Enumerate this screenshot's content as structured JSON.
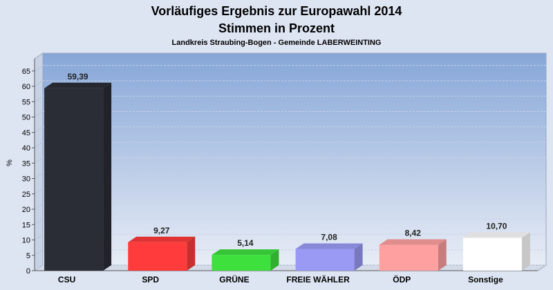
{
  "chart_data": {
    "type": "bar",
    "title": "Vorläufiges Ergebnis zur Europawahl 2014",
    "subtitle": "Stimmen in Prozent",
    "subsubtitle": "Landkreis Straubing-Bogen - Gemeinde LABERWEINTING",
    "ylabel": "%",
    "xlabel": "",
    "ylim": [
      0,
      69
    ],
    "yticks": [
      0,
      5,
      10,
      15,
      20,
      25,
      30,
      35,
      40,
      45,
      50,
      55,
      60,
      65
    ],
    "grid": true,
    "categories": [
      "CSU",
      "SPD",
      "GRÜNE",
      "FREIE WÄHLER",
      "ÖDP",
      "Sonstige"
    ],
    "values": [
      59.39,
      9.27,
      5.14,
      7.08,
      8.42,
      10.7
    ],
    "value_labels": [
      "59,39",
      "9,27",
      "5,14",
      "7,08",
      "8,42",
      "10,70"
    ],
    "colors": [
      "#2b2d36",
      "#ff3b3b",
      "#3de03d",
      "#9a9af5",
      "#ffa0a0",
      "#ffffff"
    ]
  }
}
